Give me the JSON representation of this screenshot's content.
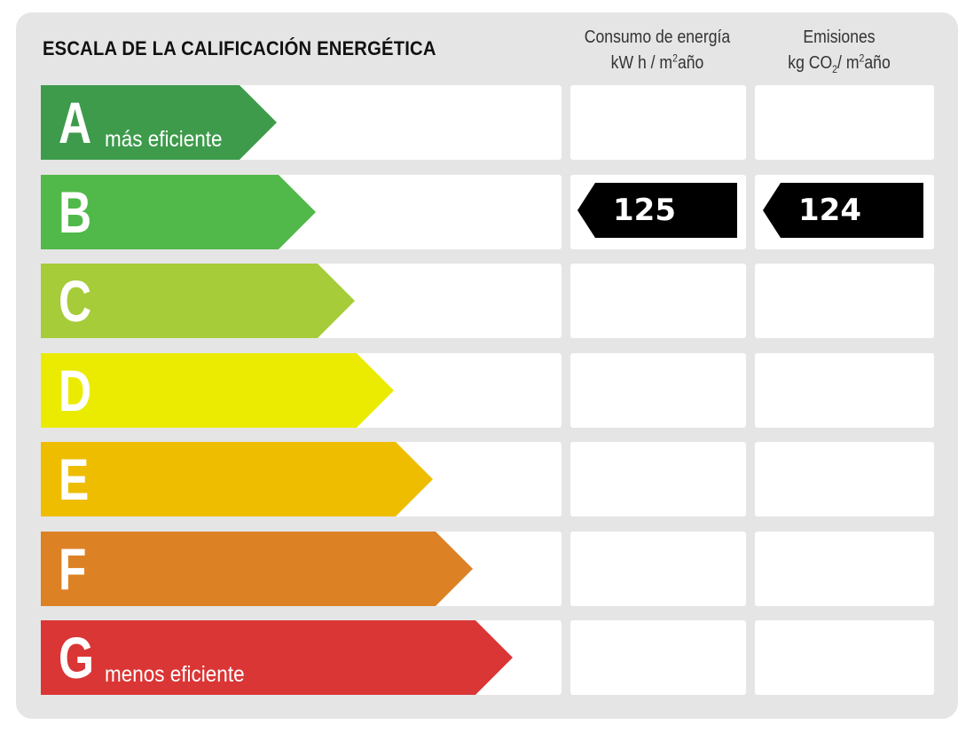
{
  "title": "ESCALA DE LA CALIFICACIÓN ENERGÉTICA",
  "columns": {
    "consumo": {
      "line1": "Consumo de energía",
      "line2_pre": "kW h / m",
      "line2_sup": "2",
      "line2_post": "año"
    },
    "emisiones": {
      "line1": "Emisiones",
      "line2_pre": "kg CO",
      "line2_sub": "2",
      "line2_mid": "/ m",
      "line2_sup": "2",
      "line2_post": "año"
    }
  },
  "ratings": [
    {
      "letter": "A",
      "subtitle": "más eficiente",
      "color": "#3d9b4b"
    },
    {
      "letter": "B",
      "subtitle": "",
      "color": "#51b84a"
    },
    {
      "letter": "C",
      "subtitle": "",
      "color": "#a6cc39"
    },
    {
      "letter": "D",
      "subtitle": "",
      "color": "#ebeb02"
    },
    {
      "letter": "E",
      "subtitle": "",
      "color": "#eebd00"
    },
    {
      "letter": "F",
      "subtitle": "",
      "color": "#dd8125"
    },
    {
      "letter": "G",
      "subtitle": "menos eficiente",
      "color": "#da3635"
    }
  ],
  "current_rating": "B",
  "consumo_value": "125",
  "emisiones_value": "124",
  "indicator_color": "#000000"
}
